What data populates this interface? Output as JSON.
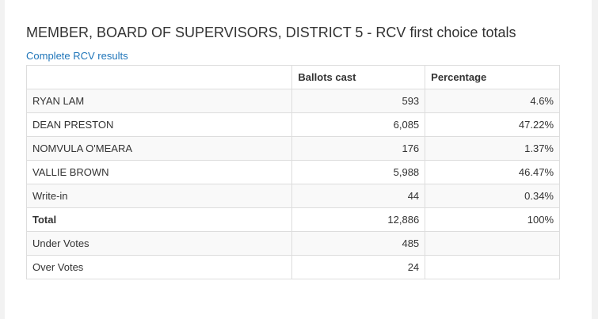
{
  "page": {
    "title": "MEMBER, BOARD OF SUPERVISORS, DISTRICT 5 - RCV first choice totals",
    "link_label": "Complete RCV results"
  },
  "table": {
    "headers": {
      "name": "",
      "ballots": "Ballots cast",
      "percentage": "Percentage"
    },
    "rows": [
      {
        "name": "RYAN LAM",
        "ballots": "593",
        "percentage": "4.6%"
      },
      {
        "name": "DEAN PRESTON",
        "ballots": "6,085",
        "percentage": "47.22%"
      },
      {
        "name": "NOMVULA O'MEARA",
        "ballots": "176",
        "percentage": "1.37%"
      },
      {
        "name": "VALLIE BROWN",
        "ballots": "5,988",
        "percentage": "46.47%"
      },
      {
        "name": "Write-in",
        "ballots": "44",
        "percentage": "0.34%"
      },
      {
        "name": "Total",
        "ballots": "12,886",
        "percentage": "100%"
      },
      {
        "name": "Under Votes",
        "ballots": "485",
        "percentage": ""
      },
      {
        "name": "Over Votes",
        "ballots": "24",
        "percentage": ""
      }
    ]
  },
  "colors": {
    "link": "#1f75b9",
    "text": "#333333",
    "border": "#dddddd",
    "stripe": "#f9f9f9",
    "background": "#f2f2f2"
  }
}
